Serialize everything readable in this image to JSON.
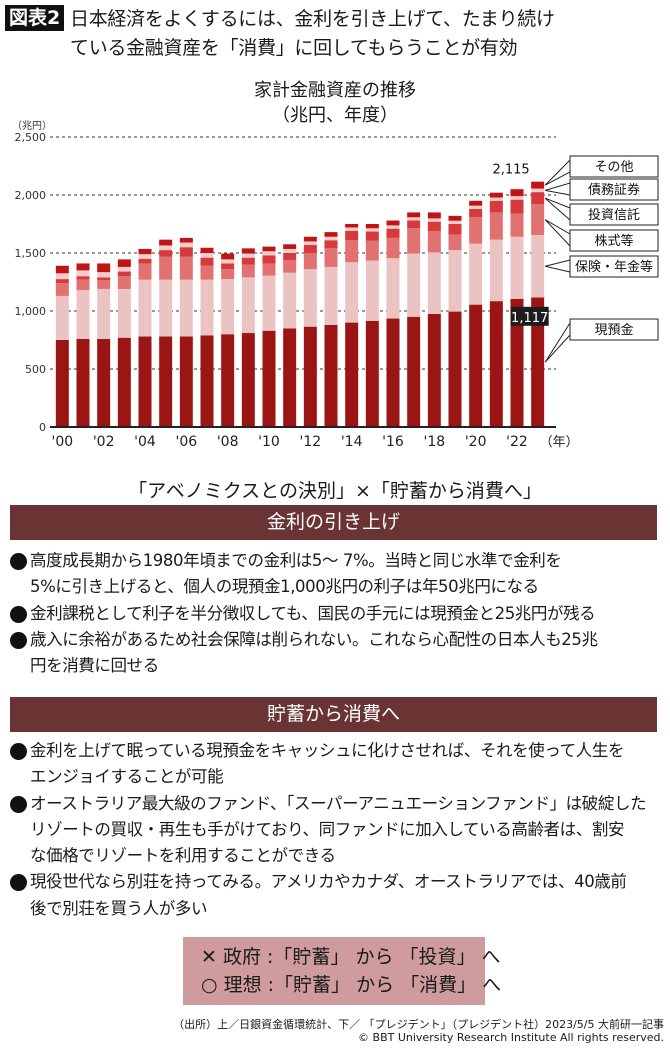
{
  "header": {
    "badge": "図表2",
    "title_lines": [
      "日本経済をよくするには、金利を引き上げて、たまり続け",
      "ている金融資産を「消費」に回してもらうことが有効"
    ]
  },
  "chart_data": {
    "type": "bar",
    "stacked": true,
    "title": "家計金融資産の推移",
    "subtitle": "（兆円、年度）",
    "ylabel": "（兆円）",
    "xlabel": "（年）",
    "ylim": [
      0,
      2500
    ],
    "yticks": [
      "0",
      "500",
      "1,000",
      "1,500",
      "2,000",
      "2,500"
    ],
    "ytick_values": [
      0,
      500,
      1000,
      1500,
      2000,
      2500
    ],
    "grid": "dashed horizontal",
    "categories": [
      2000,
      2001,
      2002,
      2003,
      2004,
      2005,
      2006,
      2007,
      2008,
      2009,
      2010,
      2011,
      2012,
      2013,
      2014,
      2015,
      2016,
      2017,
      2018,
      2019,
      2020,
      2021,
      2022,
      2023
    ],
    "xtick_labels": [
      "'00",
      "'02",
      "'04",
      "'06",
      "'08",
      "'10",
      "'12",
      "'14",
      "'16",
      "'18",
      "'20",
      "'22"
    ],
    "series": [
      {
        "name": "現預金",
        "color": "#9b1515",
        "values": [
          750,
          760,
          760,
          770,
          780,
          780,
          780,
          790,
          800,
          810,
          830,
          850,
          865,
          880,
          900,
          915,
          935,
          950,
          975,
          995,
          1055,
          1085,
          1105,
          1117
        ]
      },
      {
        "name": "保険・年金等",
        "color": "#ecc3c3",
        "values": [
          380,
          420,
          430,
          420,
          490,
          490,
          490,
          480,
          475,
          480,
          475,
          480,
          495,
          500,
          520,
          520,
          520,
          545,
          530,
          530,
          525,
          530,
          535,
          538
        ]
      },
      {
        "name": "株式等",
        "color": "#e27272",
        "values": [
          110,
          90,
          75,
          110,
          140,
          200,
          200,
          120,
          85,
          110,
          105,
          110,
          140,
          160,
          190,
          170,
          175,
          220,
          185,
          135,
          230,
          235,
          200,
          265
        ]
      },
      {
        "name": "投資信託",
        "color": "#d63a3a",
        "values": [
          35,
          30,
          25,
          40,
          40,
          55,
          80,
          70,
          50,
          60,
          70,
          60,
          70,
          70,
          80,
          80,
          80,
          65,
          80,
          90,
          70,
          100,
          120,
          105
        ]
      },
      {
        "name": "債務証券",
        "color": "#f4cccc",
        "values": [
          50,
          50,
          45,
          40,
          40,
          40,
          40,
          40,
          35,
          35,
          35,
          35,
          30,
          30,
          30,
          28,
          28,
          28,
          28,
          28,
          28,
          28,
          30,
          30
        ]
      },
      {
        "name": "その他",
        "color": "#c01515",
        "values": [
          65,
          60,
          75,
          65,
          45,
          50,
          40,
          45,
          50,
          45,
          40,
          40,
          40,
          40,
          30,
          37,
          42,
          42,
          52,
          42,
          42,
          42,
          60,
          60
        ]
      }
    ],
    "annotations": {
      "total_last": "2,115",
      "cash_last": "1,117"
    },
    "legend": "right, callout boxes"
  },
  "sections": {
    "heading": "「アベノミクスとの決別」×「貯蓄から消費へ」",
    "rate": {
      "title": "金利の引き上げ",
      "bullets": [
        [
          "高度成長期から1980年頃までの金利は5～ 7%。当時と同じ水準で金利を",
          "5%に引き上げると、個人の現預金1,000兆円の利子は年50兆円になる"
        ],
        [
          "金利課税として利子を半分徴収しても、国民の手元には現預金と25兆円が残る"
        ],
        [
          "歳入に余裕があるため社会保障は削られない。これなら心配性の日本人も25兆",
          "円を消費に回せる"
        ]
      ]
    },
    "consume": {
      "title": "貯蓄から消費へ",
      "bullets": [
        [
          "金利を上げて眠っている現預金をキャッシュに化けさせれば、それを使って人生を",
          "エンジョイすることが可能"
        ],
        [
          "オーストラリア最大級のファンド、「スーパーアニュエーションファンド」は破綻した",
          "リゾートの買収・再生も手がけており、同ファンドに加入している高齢者は、割安",
          "な価格でリゾートを利用することができる"
        ],
        [
          "現役世代なら別荘を持ってみる。アメリカやカナダ、オーストラリアでは、40歳前",
          "後で別荘を買う人が多い"
        ]
      ]
    }
  },
  "verdict": {
    "wrong": "✕ 政府 :「貯蓄」 から 「投資」 へ",
    "right": "○ 理想 :「貯蓄」 から 「消費」 へ"
  },
  "footer": {
    "source": "（出所）上／日銀資金循環統計、下／ 「プレジデント」（プレジデント社）2023/5/5 大前研一記事",
    "copyright": "© BBT University Research Institute All rights reserved."
  }
}
